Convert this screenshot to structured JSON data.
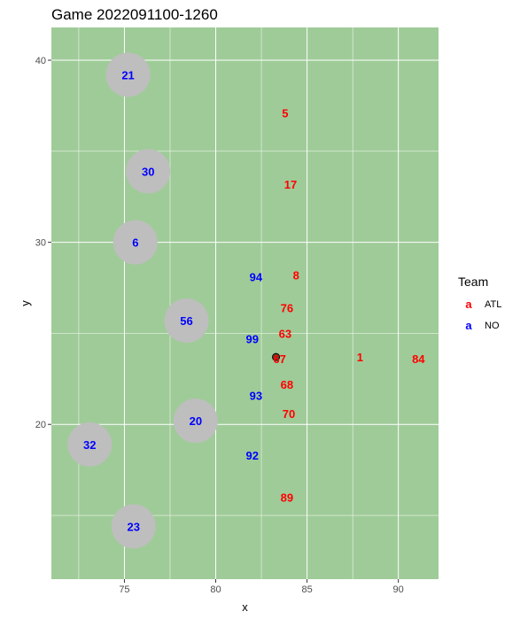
{
  "chart_data": {
    "type": "scatter",
    "title": "Game 2022091100-1260",
    "xlabel": "x",
    "ylabel": "y",
    "xlim": [
      71,
      92.2
    ],
    "ylim": [
      11.5,
      41.8
    ],
    "xticks": [
      75,
      80,
      85,
      90
    ],
    "yticks": [
      20,
      30,
      40
    ],
    "grid": true,
    "background": "#9fcb98",
    "legend": {
      "title": "Team",
      "position": "right",
      "key_glyph": "a",
      "entries": [
        {
          "label": "ATL",
          "color": "#ff0000"
        },
        {
          "label": "NO",
          "color": "#0000ff"
        }
      ]
    },
    "zone_color": "#bebebe",
    "ball": {
      "x": 83.3,
      "y": 23.7,
      "color": "#654321"
    },
    "players": [
      {
        "team": "NO",
        "label": "21",
        "x": 75.2,
        "y": 39.2,
        "zone": true
      },
      {
        "team": "NO",
        "label": "30",
        "x": 76.3,
        "y": 33.9,
        "zone": true
      },
      {
        "team": "NO",
        "label": "6",
        "x": 75.6,
        "y": 30.0,
        "zone": true
      },
      {
        "team": "NO",
        "label": "56",
        "x": 78.4,
        "y": 25.7,
        "zone": true
      },
      {
        "team": "NO",
        "label": "20",
        "x": 78.9,
        "y": 20.2,
        "zone": true
      },
      {
        "team": "NO",
        "label": "32",
        "x": 73.1,
        "y": 18.9,
        "zone": true
      },
      {
        "team": "NO",
        "label": "23",
        "x": 75.5,
        "y": 14.4,
        "zone": true
      },
      {
        "team": "NO",
        "label": "94",
        "x": 82.2,
        "y": 28.1,
        "zone": false
      },
      {
        "team": "NO",
        "label": "99",
        "x": 82.0,
        "y": 24.7,
        "zone": false
      },
      {
        "team": "NO",
        "label": "93",
        "x": 82.2,
        "y": 21.6,
        "zone": false
      },
      {
        "team": "NO",
        "label": "92",
        "x": 82.0,
        "y": 18.3,
        "zone": false
      },
      {
        "team": "ATL",
        "label": "5",
        "x": 83.8,
        "y": 37.1,
        "zone": false
      },
      {
        "team": "ATL",
        "label": "17",
        "x": 84.1,
        "y": 33.2,
        "zone": false
      },
      {
        "team": "ATL",
        "label": "8",
        "x": 84.4,
        "y": 28.2,
        "zone": false
      },
      {
        "team": "ATL",
        "label": "76",
        "x": 83.9,
        "y": 26.4,
        "zone": false
      },
      {
        "team": "ATL",
        "label": "63",
        "x": 83.8,
        "y": 25.0,
        "zone": false
      },
      {
        "team": "ATL",
        "label": "67",
        "x": 83.5,
        "y": 23.6,
        "zone": false
      },
      {
        "team": "ATL",
        "label": "1",
        "x": 87.9,
        "y": 23.7,
        "zone": false
      },
      {
        "team": "ATL",
        "label": "84",
        "x": 91.1,
        "y": 23.6,
        "zone": false
      },
      {
        "team": "ATL",
        "label": "68",
        "x": 83.9,
        "y": 22.2,
        "zone": false
      },
      {
        "team": "ATL",
        "label": "70",
        "x": 84.0,
        "y": 20.6,
        "zone": false
      },
      {
        "team": "ATL",
        "label": "89",
        "x": 83.9,
        "y": 16.0,
        "zone": false
      }
    ]
  }
}
